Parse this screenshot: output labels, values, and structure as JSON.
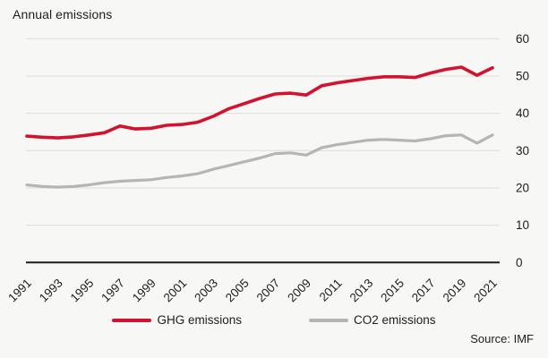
{
  "title": "Annual emissions",
  "source": "Source: IMF",
  "legend": [
    {
      "label": "GHG emissions",
      "color": "#d2122e"
    },
    {
      "label": "CO2 emissions",
      "color": "#b5b5b5"
    }
  ],
  "chart_data": {
    "type": "line",
    "title": "Annual emissions",
    "x": [
      1991,
      1992,
      1993,
      1994,
      1995,
      1996,
      1997,
      1998,
      1999,
      2000,
      2001,
      2002,
      2003,
      2004,
      2005,
      2006,
      2007,
      2008,
      2009,
      2010,
      2011,
      2012,
      2013,
      2014,
      2015,
      2016,
      2017,
      2018,
      2019,
      2020,
      2021
    ],
    "x_tick_labels": [
      "1991",
      "1993",
      "1995",
      "1997",
      "1999",
      "2001",
      "2003",
      "2005",
      "2007",
      "2009",
      "2011",
      "2013",
      "2015",
      "2017",
      "2019",
      "2021"
    ],
    "y_ticks": [
      0,
      10,
      20,
      30,
      40,
      50,
      60
    ],
    "ylim": [
      0,
      60
    ],
    "y_axis_side": "right",
    "grid": "horizontal",
    "legend_position": "bottom-center",
    "series": [
      {
        "name": "GHG emissions",
        "color": "#d2122e",
        "values": [
          33.9,
          33.6,
          33.4,
          33.7,
          34.2,
          34.8,
          36.6,
          35.8,
          36.0,
          36.8,
          37.0,
          37.6,
          39.2,
          41.2,
          42.6,
          44.0,
          45.2,
          45.4,
          44.9,
          47.4,
          48.2,
          48.8,
          49.4,
          49.8,
          49.8,
          49.6,
          50.8,
          51.8,
          52.4,
          50.2,
          52.2
        ]
      },
      {
        "name": "CO2 emissions",
        "color": "#b5b5b5",
        "values": [
          20.8,
          20.4,
          20.2,
          20.4,
          20.8,
          21.4,
          21.8,
          22.0,
          22.2,
          22.8,
          23.2,
          23.8,
          25.0,
          26.0,
          27.0,
          28.0,
          29.2,
          29.4,
          28.8,
          30.8,
          31.6,
          32.2,
          32.8,
          33.0,
          32.8,
          32.6,
          33.2,
          34.0,
          34.2,
          32.0,
          34.2
        ]
      }
    ],
    "source": "Source: IMF",
    "colors": {
      "background": "#f7f7f5",
      "gridline": "#dcdcdc",
      "axis": "#1d1d1b",
      "text": "#1d1d1b"
    }
  }
}
